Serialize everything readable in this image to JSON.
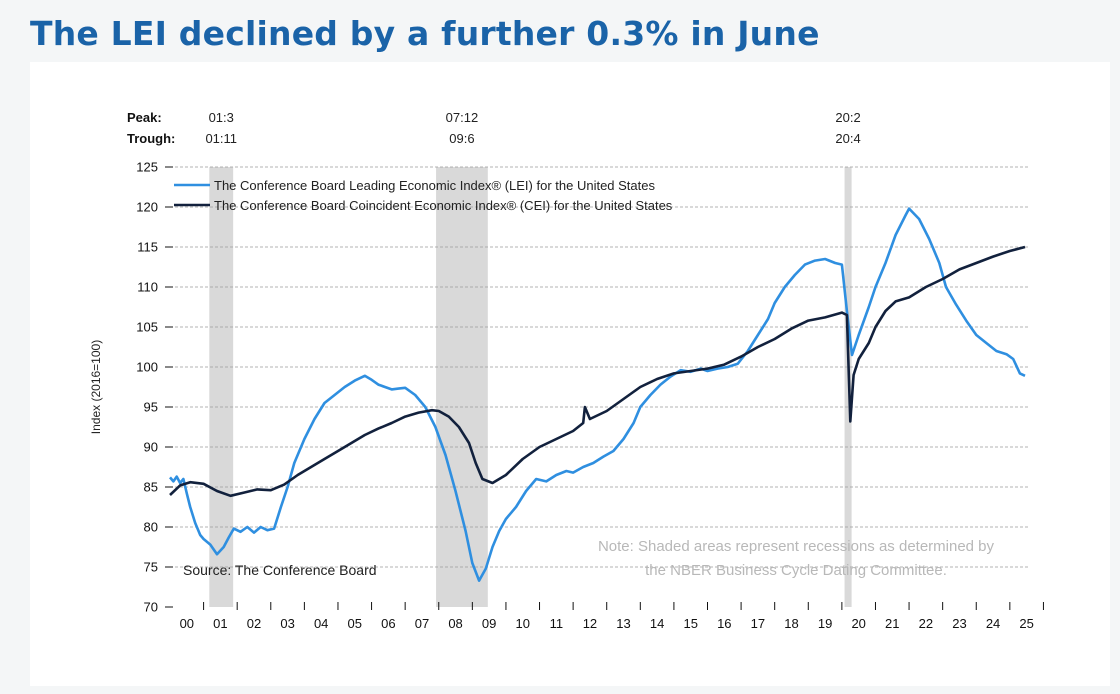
{
  "page": {
    "title": "The LEI declined by a further 0.3% in June"
  },
  "chart_data": {
    "type": "line",
    "ylabel": "Index (2016=100)",
    "ylim": [
      70,
      125
    ],
    "yticks": [
      "70",
      "75",
      "80",
      "85",
      "90",
      "95",
      "100",
      "105",
      "110",
      "115",
      "120",
      "125"
    ],
    "xlim": [
      2000,
      2025.6
    ],
    "xticks": [
      "00",
      "01",
      "02",
      "03",
      "04",
      "05",
      "06",
      "07",
      "08",
      "09",
      "10",
      "11",
      "12",
      "13",
      "14",
      "15",
      "16",
      "17",
      "18",
      "19",
      "20",
      "21",
      "22",
      "23",
      "24",
      "25"
    ],
    "grid": true,
    "legend_position": "top-left",
    "peak_label": "Peak:",
    "trough_label": "Trough:",
    "recessions": [
      {
        "peak": "01:3",
        "trough": "01:11",
        "start": 2001.17,
        "end": 2001.88
      },
      {
        "peak": "07:12",
        "trough": "09:6",
        "start": 2007.92,
        "end": 2009.46
      },
      {
        "peak": "20:2",
        "trough": "20:4",
        "start": 2020.08,
        "end": 2020.29
      }
    ],
    "source": "Source: The Conference Board",
    "note": [
      "Note: Shaded areas represent recessions as determined by",
      "the NBER Business Cycle Dating Committee."
    ],
    "colors": {
      "lei": "#2f8fe0",
      "cei": "#12213d",
      "shade": "#d9d9d9",
      "grid": "#9a9a9a"
    },
    "series": [
      {
        "name": "The Conference Board Leading Economic Index® (LEI) for the United States",
        "x": [
          2000.0,
          2000.1,
          2000.2,
          2000.3,
          2000.4,
          2000.5,
          2000.6,
          2000.75,
          2000.9,
          2001.0,
          2001.2,
          2001.4,
          2001.6,
          2001.75,
          2001.9,
          2002.1,
          2002.3,
          2002.5,
          2002.7,
          2002.9,
          2003.1,
          2003.3,
          2003.5,
          2003.7,
          2004.0,
          2004.3,
          2004.6,
          2004.9,
          2005.2,
          2005.5,
          2005.8,
          2006.0,
          2006.2,
          2006.4,
          2006.6,
          2006.8,
          2007.0,
          2007.3,
          2007.6,
          2007.9,
          2008.2,
          2008.5,
          2008.8,
          2009.0,
          2009.2,
          2009.4,
          2009.6,
          2009.8,
          2010.0,
          2010.3,
          2010.6,
          2010.9,
          2011.2,
          2011.5,
          2011.8,
          2012.0,
          2012.3,
          2012.6,
          2012.9,
          2013.2,
          2013.5,
          2013.8,
          2014.0,
          2014.3,
          2014.6,
          2014.9,
          2015.2,
          2015.5,
          2015.8,
          2016.0,
          2016.3,
          2016.6,
          2016.9,
          2017.2,
          2017.5,
          2017.8,
          2018.0,
          2018.3,
          2018.6,
          2018.9,
          2019.2,
          2019.5,
          2019.8,
          2020.0,
          2020.15,
          2020.3,
          2020.5,
          2020.8,
          2021.0,
          2021.3,
          2021.6,
          2021.9,
          2022.0,
          2022.3,
          2022.6,
          2022.9,
          2023.1,
          2023.4,
          2023.7,
          2024.0,
          2024.3,
          2024.6,
          2024.9,
          2025.1,
          2025.3,
          2025.45
        ],
        "values": [
          86.2,
          85.7,
          86.3,
          85.5,
          86.0,
          84.2,
          82.5,
          80.5,
          79.0,
          78.5,
          77.8,
          76.6,
          77.5,
          78.7,
          79.8,
          79.4,
          80.0,
          79.3,
          80.0,
          79.6,
          79.8,
          82.5,
          85.0,
          88.0,
          91.0,
          93.5,
          95.5,
          96.5,
          97.5,
          98.3,
          98.9,
          98.4,
          97.8,
          97.5,
          97.2,
          97.3,
          97.4,
          96.5,
          95.0,
          92.5,
          89.0,
          84.5,
          79.5,
          75.5,
          73.3,
          74.8,
          77.5,
          79.5,
          81.0,
          82.5,
          84.5,
          86.0,
          85.7,
          86.5,
          87.0,
          86.8,
          87.5,
          88.0,
          88.8,
          89.5,
          91.0,
          93.0,
          95.0,
          96.5,
          97.8,
          98.8,
          99.6,
          99.4,
          99.8,
          99.5,
          99.8,
          100.0,
          100.4,
          102.0,
          104.0,
          106.0,
          108.0,
          110.0,
          111.5,
          112.8,
          113.3,
          113.5,
          113.0,
          112.8,
          107.0,
          101.5,
          104.0,
          107.5,
          110.0,
          113.0,
          116.5,
          119.0,
          119.8,
          118.5,
          116.0,
          113.0,
          110.0,
          107.8,
          105.8,
          104.0,
          103.0,
          102.0,
          101.6,
          101.0,
          99.2,
          98.9
        ]
      },
      {
        "name": "The Conference Board Coincident Economic Index® (CEI) for the United States",
        "x": [
          2000.0,
          2000.3,
          2000.6,
          2001.0,
          2001.4,
          2001.8,
          2002.2,
          2002.6,
          2003.0,
          2003.4,
          2003.8,
          2004.2,
          2004.6,
          2005.0,
          2005.4,
          2005.8,
          2006.2,
          2006.6,
          2007.0,
          2007.4,
          2007.8,
          2008.0,
          2008.3,
          2008.6,
          2008.9,
          2009.1,
          2009.3,
          2009.6,
          2010.0,
          2010.5,
          2011.0,
          2011.5,
          2012.0,
          2012.3,
          2012.35,
          2012.5,
          2013.0,
          2013.5,
          2014.0,
          2014.5,
          2015.0,
          2015.5,
          2016.0,
          2016.5,
          2017.0,
          2017.5,
          2018.0,
          2018.5,
          2019.0,
          2019.5,
          2020.0,
          2020.15,
          2020.25,
          2020.35,
          2020.5,
          2020.8,
          2021.0,
          2021.3,
          2021.6,
          2022.0,
          2022.5,
          2023.0,
          2023.5,
          2024.0,
          2024.5,
          2025.0,
          2025.45
        ],
        "values": [
          84.0,
          85.2,
          85.6,
          85.4,
          84.5,
          83.9,
          84.3,
          84.7,
          84.6,
          85.3,
          86.5,
          87.5,
          88.5,
          89.5,
          90.5,
          91.5,
          92.3,
          93.0,
          93.8,
          94.3,
          94.6,
          94.5,
          93.8,
          92.5,
          90.5,
          88.0,
          86.0,
          85.5,
          86.5,
          88.5,
          90.0,
          91.0,
          92.0,
          93.0,
          95.0,
          93.5,
          94.5,
          96.0,
          97.5,
          98.5,
          99.2,
          99.5,
          99.8,
          100.3,
          101.3,
          102.5,
          103.5,
          104.8,
          105.8,
          106.2,
          106.8,
          106.5,
          93.2,
          99.0,
          101.0,
          103.0,
          105.0,
          107.0,
          108.2,
          108.7,
          110.0,
          111.0,
          112.2,
          113.0,
          113.8,
          114.5,
          115.0
        ]
      }
    ]
  }
}
